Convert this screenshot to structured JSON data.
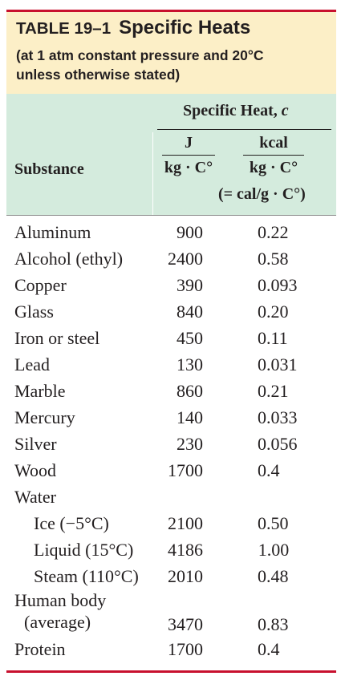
{
  "title": {
    "label": "TABLE 19–1",
    "name": "Specific Heats",
    "subtitle_lines": [
      "(at 1 atm constant pressure and 20°C",
      "unless otherwise stated)"
    ]
  },
  "header": {
    "specific_heat_prefix": "Specific Heat, ",
    "specific_heat_symbol": "c",
    "substance": "Substance",
    "col_j": {
      "numerator": "J",
      "denominator": "kg · C°"
    },
    "col_kcal": {
      "numerator": "kcal",
      "denominator": "kg · C°",
      "note": "(= cal/g · C°)"
    }
  },
  "rows": [
    {
      "name": "Aluminum",
      "j": "900",
      "kcal": "0.22"
    },
    {
      "name": "Alcohol (ethyl)",
      "j": "2400",
      "kcal": "0.58"
    },
    {
      "name": "Copper",
      "j": "390",
      "kcal": "0.093"
    },
    {
      "name": "Glass",
      "j": "840",
      "kcal": "0.20"
    },
    {
      "name": "Iron or steel",
      "j": "450",
      "kcal": "0.11"
    },
    {
      "name": "Lead",
      "j": "130",
      "kcal": "0.031"
    },
    {
      "name": "Marble",
      "j": "860",
      "kcal": "0.21"
    },
    {
      "name": "Mercury",
      "j": "140",
      "kcal": "0.033"
    },
    {
      "name": "Silver",
      "j": "230",
      "kcal": "0.056"
    },
    {
      "name": "Wood",
      "j": "1700",
      "kcal": "0.4"
    },
    {
      "name": "Water",
      "j": "",
      "kcal": ""
    },
    {
      "name": "Ice (−5°C)",
      "j": "2100",
      "kcal": "0.50"
    },
    {
      "name": "Liquid (15°C)",
      "j": "4186",
      "kcal": "1.00"
    },
    {
      "name": "Steam (110°C)",
      "j": "2010",
      "kcal": "0.48"
    },
    {
      "name_lines": [
        "Human body",
        "(average)"
      ],
      "j": "3470",
      "kcal": "0.83"
    },
    {
      "name": "Protein",
      "j": "1700",
      "kcal": "0.4"
    }
  ],
  "colors": {
    "rule": "#c8102e",
    "title_background": "#fcefc7",
    "header_background": "#d4ebdd",
    "text": "#231f20"
  }
}
